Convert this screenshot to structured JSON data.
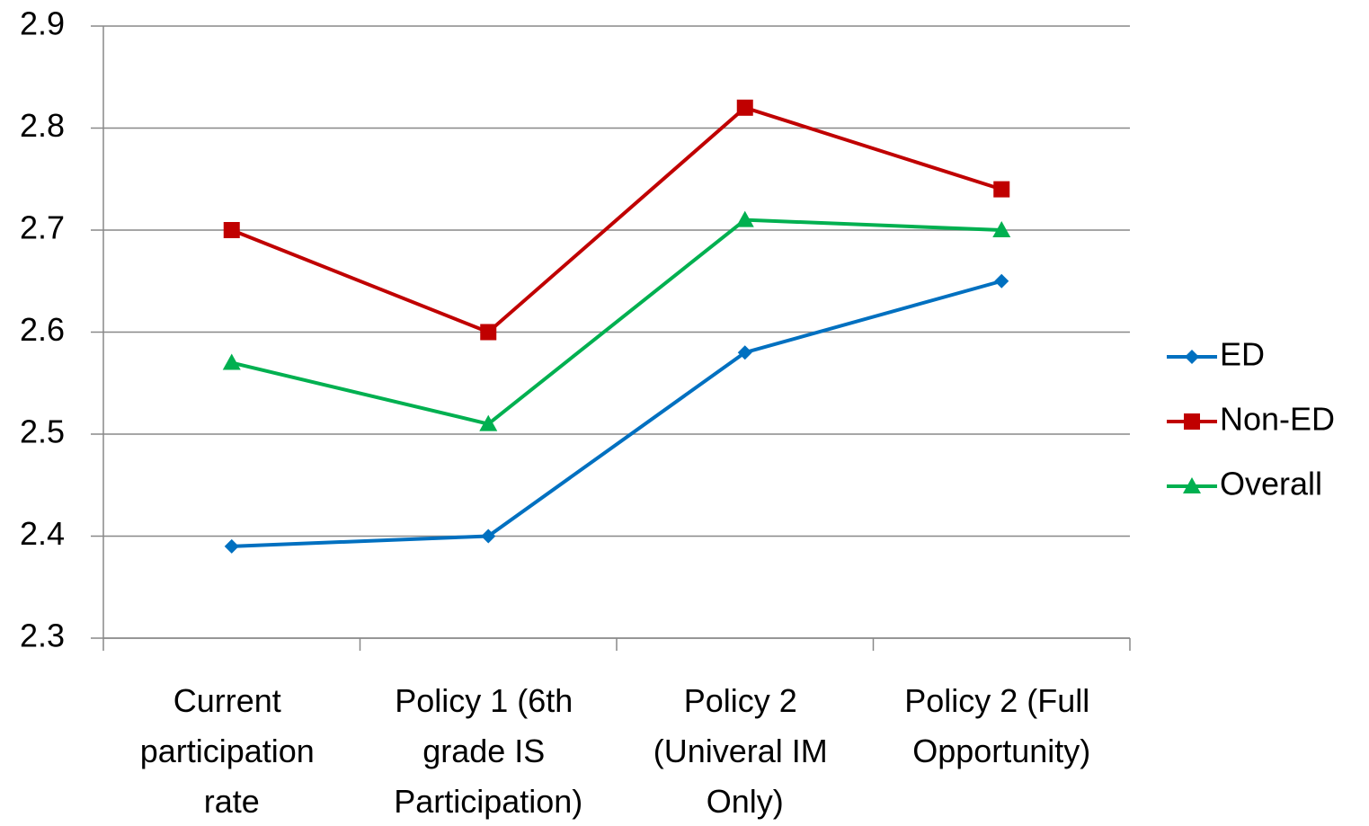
{
  "chart_data": {
    "type": "line",
    "categories": [
      "Current participation rate",
      "Policy 1 (6th grade IS Participation)",
      "Policy 2 (Univeral IM Only)",
      "Policy 2 (Full Opportunity)"
    ],
    "series": [
      {
        "name": "ED",
        "color": "#0070c0",
        "marker": "diamond",
        "values": [
          2.39,
          2.4,
          2.58,
          2.65
        ]
      },
      {
        "name": "Non-ED",
        "color": "#c00000",
        "marker": "square",
        "values": [
          2.7,
          2.6,
          2.82,
          2.74
        ]
      },
      {
        "name": "Overall",
        "color": "#00b050",
        "marker": "triangle",
        "values": [
          2.57,
          2.51,
          2.71,
          2.7
        ]
      }
    ],
    "ylim": [
      2.3,
      2.9
    ],
    "yticks": [
      2.3,
      2.4,
      2.5,
      2.6,
      2.7,
      2.8,
      2.9
    ],
    "grid": true,
    "legend": "right"
  }
}
